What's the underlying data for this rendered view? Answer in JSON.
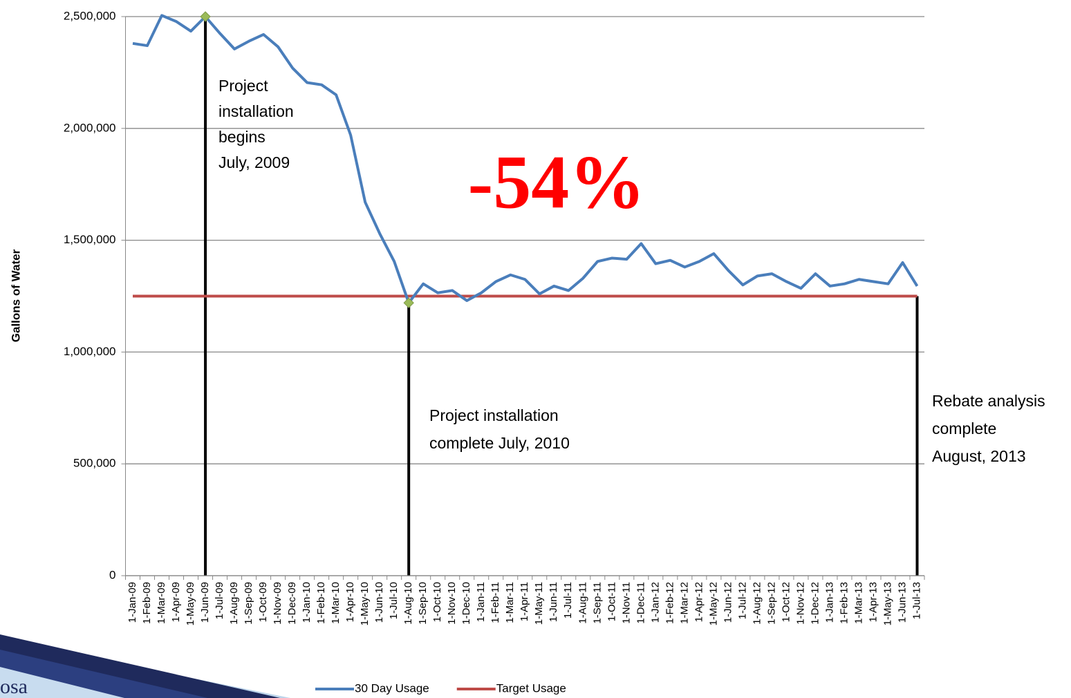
{
  "chart_data": {
    "type": "line",
    "y_label": "Gallons of Water",
    "categories": [
      "1-Jan-09",
      "1-Feb-09",
      "1-Mar-09",
      "1-Apr-09",
      "1-May-09",
      "1-Jun-09",
      "1-Jul-09",
      "1-Aug-09",
      "1-Sep-09",
      "1-Oct-09",
      "1-Nov-09",
      "1-Dec-09",
      "1-Jan-10",
      "1-Feb-10",
      "1-Mar-10",
      "1-Apr-10",
      "1-May-10",
      "1-Jun-10",
      "1-Jul-10",
      "1-Aug-10",
      "1-Sep-10",
      "1-Oct-10",
      "1-Nov-10",
      "1-Dec-10",
      "1-Jan-11",
      "1-Feb-11",
      "1-Mar-11",
      "1-Apr-11",
      "1-May-11",
      "1-Jun-11",
      "1-Jul-11",
      "1-Aug-11",
      "1-Sep-11",
      "1-Oct-11",
      "1-Nov-11",
      "1-Dec-11",
      "1-Jan-12",
      "1-Feb-12",
      "1-Mar-12",
      "1-Apr-12",
      "1-May-12",
      "1-Jun-12",
      "1-Jul-12",
      "1-Aug-12",
      "1-Sep-12",
      "1-Oct-12",
      "1-Nov-12",
      "1-Dec-12",
      "1-Jan-13",
      "1-Feb-13",
      "1-Mar-13",
      "1-Apr-13",
      "1-May-13",
      "1-Jun-13",
      "1-Jul-13"
    ],
    "series": [
      {
        "name": "30 Day Usage",
        "color": "#4a7ebb",
        "values": [
          2380000,
          2370000,
          2505000,
          2478000,
          2435000,
          2500000,
          2425000,
          2355000,
          2390000,
          2420000,
          2365000,
          2270000,
          2205000,
          2195000,
          2150000,
          1970000,
          1670000,
          1530000,
          1405000,
          1220000,
          1305000,
          1265000,
          1275000,
          1230000,
          1265000,
          1315000,
          1345000,
          1325000,
          1260000,
          1295000,
          1275000,
          1330000,
          1405000,
          1420000,
          1415000,
          1485000,
          1395000,
          1410000,
          1380000,
          1405000,
          1440000,
          1365000,
          1300000,
          1340000,
          1350000,
          1315000,
          1285000,
          1350000,
          1295000,
          1305000,
          1325000,
          1315000,
          1305000,
          1400000,
          1295000
        ]
      },
      {
        "name": "Target Usage",
        "color": "#be4b48",
        "values": [
          1250000,
          1250000,
          1250000,
          1250000,
          1250000,
          1250000,
          1250000,
          1250000,
          1250000,
          1250000,
          1250000,
          1250000,
          1250000,
          1250000,
          1250000,
          1250000,
          1250000,
          1250000,
          1250000,
          1250000,
          1250000,
          1250000,
          1250000,
          1250000,
          1250000,
          1250000,
          1250000,
          1250000,
          1250000,
          1250000,
          1250000,
          1250000,
          1250000,
          1250000,
          1250000,
          1250000,
          1250000,
          1250000,
          1250000,
          1250000,
          1250000,
          1250000,
          1250000,
          1250000,
          1250000,
          1250000,
          1250000,
          1250000,
          1250000,
          1250000,
          1250000,
          1250000,
          1250000,
          1250000,
          1250000
        ]
      }
    ],
    "ylim": [
      0,
      2500000
    ],
    "yticks": [
      0,
      {
        "value": 500000,
        "label": "500,000"
      },
      {
        "value": 1000000,
        "label": "1,000,000"
      },
      {
        "value": 1500000,
        "label": "1,500,000"
      },
      {
        "value": 2000000,
        "label": "2,000,000"
      },
      {
        "value": 2500000,
        "label": "2,500,000"
      }
    ],
    "grid": true,
    "legend": "bottom",
    "annotations": [
      {
        "x": "1-Jun-09",
        "marker": true,
        "lines": [
          "Project",
          "installation",
          "begins",
          "July, 2009"
        ]
      },
      {
        "x": "1-Aug-10",
        "marker": true,
        "lines": [
          "Project installation",
          "complete July, 2010"
        ]
      },
      {
        "x": "1-Jul-13",
        "marker": false,
        "lines": [
          "Rebate analysis",
          "complete",
          "August, 2013"
        ]
      }
    ],
    "highlight": {
      "text": "-54%",
      "color": "#ff0000"
    }
  },
  "logo_text": "osa"
}
